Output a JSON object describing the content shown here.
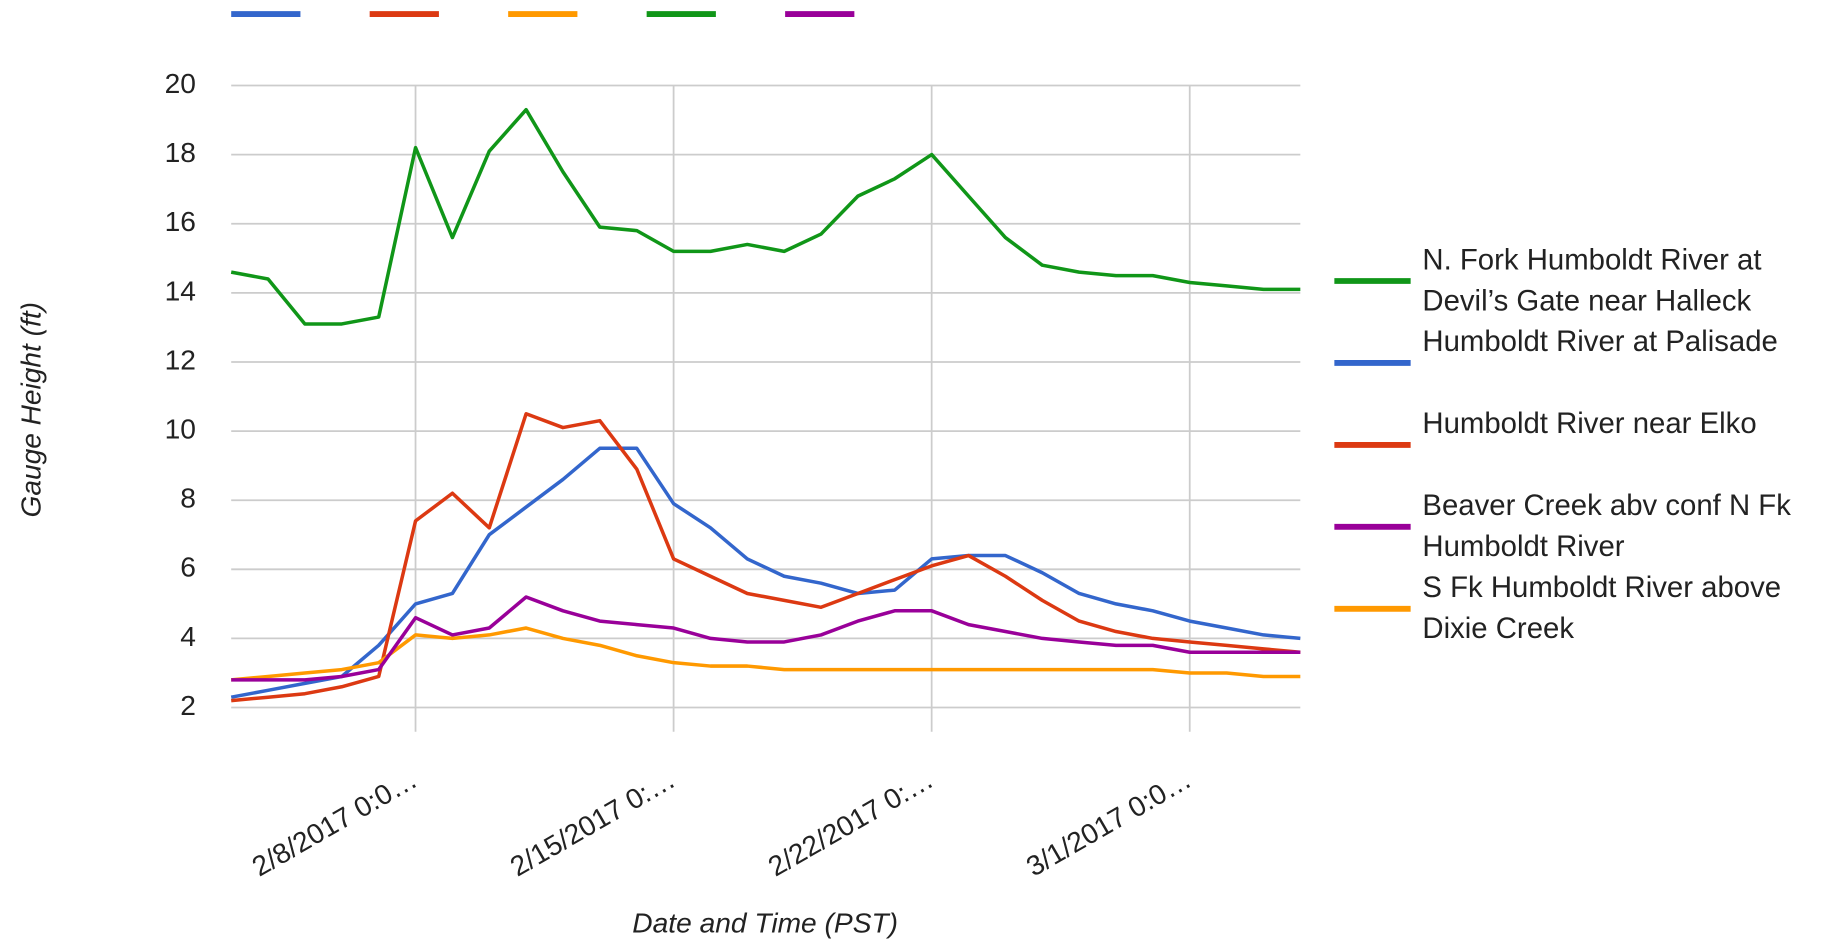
{
  "chart_data": {
    "type": "line",
    "y_label": "Gauge Height (ft)",
    "x_label": "Date and Time (PST)",
    "x": [
      "2017-02-03",
      "2017-02-04",
      "2017-02-05",
      "2017-02-06",
      "2017-02-07",
      "2017-02-08",
      "2017-02-09",
      "2017-02-10",
      "2017-02-11",
      "2017-02-12",
      "2017-02-13",
      "2017-02-14",
      "2017-02-15",
      "2017-02-16",
      "2017-02-17",
      "2017-02-18",
      "2017-02-19",
      "2017-02-20",
      "2017-02-21",
      "2017-02-22",
      "2017-02-23",
      "2017-02-24",
      "2017-02-25",
      "2017-02-26",
      "2017-02-27",
      "2017-02-28",
      "2017-03-01",
      "2017-03-02",
      "2017-03-03",
      "2017-03-04"
    ],
    "xlim": [
      "2017-02-03",
      "2017-03-04"
    ],
    "xticks": [
      {
        "value": "2017-02-08",
        "label": "2/8/2017 0:0…"
      },
      {
        "value": "2017-02-15",
        "label": "2/15/2017 0:…"
      },
      {
        "value": "2017-02-22",
        "label": "2/22/2017 0:…"
      },
      {
        "value": "2017-03-01",
        "label": "3/1/2017 0:0…"
      }
    ],
    "ylim": [
      1.3,
      20
    ],
    "yticks": [
      2,
      4,
      6,
      8,
      10,
      12,
      14,
      16,
      18,
      20
    ],
    "grid": true,
    "legend": "right",
    "legend_order": [
      3,
      0,
      1,
      4,
      2
    ],
    "series": [
      {
        "name": "Humboldt River at Palisade",
        "color": "#3366cc",
        "values": [
          2.3,
          2.5,
          2.7,
          2.9,
          3.8,
          5.0,
          5.3,
          7.0,
          7.8,
          8.6,
          9.5,
          9.5,
          7.9,
          7.2,
          6.3,
          5.8,
          5.6,
          5.3,
          5.4,
          6.3,
          6.4,
          6.4,
          5.9,
          5.3,
          5.0,
          4.8,
          4.5,
          4.3,
          4.1,
          4.0
        ]
      },
      {
        "name": "Humboldt River near Elko",
        "color": "#dc3912",
        "values": [
          2.2,
          2.3,
          2.4,
          2.6,
          2.9,
          7.4,
          8.2,
          7.2,
          10.5,
          10.1,
          10.3,
          8.9,
          6.3,
          5.8,
          5.3,
          5.1,
          4.9,
          5.3,
          5.7,
          6.1,
          6.4,
          5.8,
          5.1,
          4.5,
          4.2,
          4.0,
          3.9,
          3.8,
          3.7,
          3.6
        ]
      },
      {
        "name": "S Fk Humboldt River above Dixie Creek",
        "color": "#ff9900",
        "values": [
          2.8,
          2.9,
          3.0,
          3.1,
          3.3,
          4.1,
          4.0,
          4.1,
          4.3,
          4.0,
          3.8,
          3.5,
          3.3,
          3.2,
          3.2,
          3.1,
          3.1,
          3.1,
          3.1,
          3.1,
          3.1,
          3.1,
          3.1,
          3.1,
          3.1,
          3.1,
          3.0,
          3.0,
          2.9,
          2.9
        ]
      },
      {
        "name": "N. Fork Humboldt River at Devil’s Gate near Halleck",
        "color": "#109618",
        "values": [
          14.6,
          14.4,
          13.1,
          13.1,
          13.3,
          18.2,
          15.6,
          18.1,
          19.3,
          17.5,
          15.9,
          15.8,
          15.2,
          15.2,
          15.4,
          15.2,
          15.7,
          16.8,
          17.3,
          18.0,
          16.8,
          15.6,
          14.8,
          14.6,
          14.5,
          14.5,
          14.3,
          14.2,
          14.1,
          14.1
        ]
      },
      {
        "name": "Beaver Creek abv conf N Fk Humboldt River",
        "color": "#990099",
        "values": [
          2.8,
          2.8,
          2.8,
          2.9,
          3.1,
          4.6,
          4.1,
          4.3,
          5.2,
          4.8,
          4.5,
          4.4,
          4.3,
          4.0,
          3.9,
          3.9,
          4.1,
          4.5,
          4.8,
          4.8,
          4.4,
          4.2,
          4.0,
          3.9,
          3.8,
          3.8,
          3.6,
          3.6,
          3.6,
          3.6
        ]
      }
    ]
  }
}
